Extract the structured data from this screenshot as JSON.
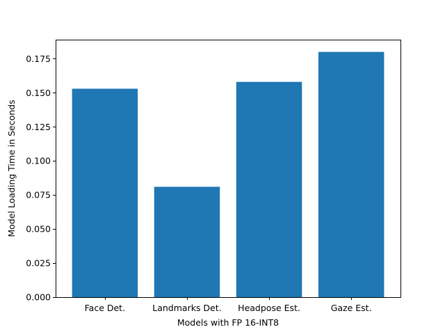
{
  "chart_data": {
    "type": "bar",
    "title": "",
    "xlabel": "Models with FP 16-INT8",
    "ylabel": "Model Loading Time in Seconds",
    "categories": [
      "Face Det.",
      "Landmarks Det.",
      "Headpose Est.",
      "Gaze Est."
    ],
    "values": [
      0.153,
      0.081,
      0.158,
      0.18
    ],
    "ylim": [
      0,
      0.189
    ],
    "yticks": [
      0.0,
      0.025,
      0.05,
      0.075,
      0.1,
      0.125,
      0.15,
      0.175
    ],
    "ytick_labels": [
      "0.000",
      "0.025",
      "0.050",
      "0.075",
      "0.100",
      "0.125",
      "0.150",
      "0.175"
    ],
    "grid": false,
    "legend": "none",
    "bar_color": "#1f77b4"
  }
}
